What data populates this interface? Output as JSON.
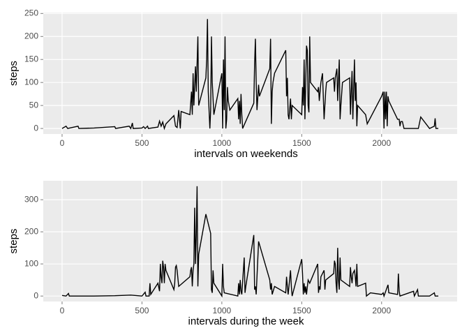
{
  "chart_data": [
    {
      "type": "line",
      "xlabel": "intervals on weekends",
      "ylabel": "steps",
      "color": "#000000",
      "grid": true,
      "xlim": [
        -117.75,
        2472.75
      ],
      "xticks": [
        0,
        500,
        1000,
        1500,
        2000
      ],
      "ylim": [
        -12,
        252
      ],
      "yticks": [
        0,
        50,
        100,
        150,
        200,
        250
      ],
      "x": [
        0,
        25,
        35,
        100,
        105,
        200,
        330,
        335,
        420,
        430,
        440,
        445,
        500,
        510,
        520,
        535,
        540,
        600,
        610,
        620,
        630,
        640,
        650,
        700,
        710,
        720,
        730,
        740,
        745,
        800,
        810,
        815,
        820,
        825,
        835,
        840,
        850,
        855,
        900,
        905,
        910,
        915,
        925,
        930,
        935,
        940,
        950,
        1000,
        1005,
        1010,
        1015,
        1020,
        1025,
        1030,
        1035,
        1040,
        1050,
        1100,
        1105,
        1110,
        1115,
        1120,
        1125,
        1130,
        1200,
        1205,
        1210,
        1215,
        1220,
        1230,
        1235,
        1300,
        1305,
        1310,
        1315,
        1320,
        1330,
        1400,
        1405,
        1410,
        1415,
        1420,
        1430,
        1435,
        1440,
        1500,
        1505,
        1510,
        1515,
        1520,
        1525,
        1530,
        1535,
        1540,
        1545,
        1550,
        1555,
        1600,
        1605,
        1610,
        1620,
        1630,
        1640,
        1650,
        1655,
        1700,
        1705,
        1710,
        1720,
        1725,
        1735,
        1740,
        1745,
        1755,
        1800,
        1805,
        1810,
        1815,
        1820,
        1830,
        1835,
        1840,
        1845,
        1850,
        1900,
        1910,
        2000,
        2010,
        2015,
        2020,
        2025,
        2030,
        2035,
        2040,
        2045,
        2100,
        2110,
        2115,
        2120,
        2125,
        2130,
        2140,
        2200,
        2230,
        2245,
        2300,
        2330,
        2335,
        2340,
        2355
      ],
      "values": [
        0,
        5,
        0,
        5,
        0,
        1,
        4,
        0,
        5,
        0,
        12,
        0,
        1,
        4,
        0,
        5,
        0,
        3,
        16,
        5,
        14,
        0,
        10,
        28,
        5,
        2,
        40,
        0,
        37,
        30,
        80,
        30,
        120,
        50,
        135,
        80,
        200,
        50,
        110,
        150,
        238,
        80,
        0,
        40,
        200,
        100,
        30,
        120,
        0,
        150,
        40,
        200,
        0,
        20,
        90,
        60,
        40,
        65,
        20,
        60,
        10,
        75,
        30,
        0,
        55,
        140,
        195,
        100,
        40,
        95,
        70,
        130,
        195,
        10,
        80,
        100,
        120,
        170,
        70,
        110,
        30,
        20,
        65,
        20,
        50,
        30,
        90,
        50,
        150,
        20,
        100,
        180,
        170,
        50,
        35,
        200,
        100,
        80,
        90,
        60,
        100,
        120,
        20,
        80,
        100,
        110,
        80,
        110,
        130,
        60,
        150,
        20,
        50,
        100,
        110,
        30,
        80,
        125,
        20,
        150,
        60,
        100,
        5,
        50,
        30,
        10,
        70,
        80,
        0,
        80,
        20,
        80,
        5,
        70,
        60,
        20,
        20,
        5,
        15,
        15,
        15,
        0,
        0,
        0,
        25,
        0,
        5,
        22,
        0,
        0
      ]
    },
    {
      "type": "line",
      "xlabel": "intervals during the week",
      "ylabel": "steps",
      "color": "#000000",
      "grid": true,
      "xlim": [
        -117.75,
        2472.75
      ],
      "xticks": [
        0,
        500,
        1000,
        1500,
        2000
      ],
      "ylim": [
        -17,
        359
      ],
      "yticks": [
        0,
        100,
        200,
        300
      ],
      "x": [
        0,
        25,
        40,
        45,
        200,
        330,
        430,
        500,
        520,
        525,
        545,
        550,
        555,
        600,
        610,
        615,
        620,
        625,
        630,
        635,
        640,
        645,
        650,
        700,
        705,
        710,
        715,
        720,
        730,
        800,
        805,
        810,
        815,
        820,
        825,
        830,
        835,
        840,
        845,
        850,
        855,
        900,
        930,
        935,
        940,
        945,
        950,
        1000,
        1005,
        1010,
        1015,
        1100,
        1105,
        1110,
        1115,
        1120,
        1125,
        1140,
        1145,
        1150,
        1200,
        1205,
        1210,
        1215,
        1230,
        1300,
        1305,
        1310,
        1315,
        1330,
        1400,
        1405,
        1410,
        1415,
        1430,
        1435,
        1440,
        1500,
        1505,
        1510,
        1515,
        1520,
        1525,
        1530,
        1540,
        1550,
        1600,
        1605,
        1610,
        1615,
        1620,
        1630,
        1640,
        1645,
        1650,
        1700,
        1705,
        1710,
        1715,
        1720,
        1725,
        1730,
        1735,
        1740,
        1745,
        1800,
        1805,
        1810,
        1815,
        1820,
        1830,
        1835,
        1840,
        1845,
        1850,
        1900,
        1905,
        1930,
        2000,
        2010,
        2015,
        2040,
        2045,
        2100,
        2105,
        2110,
        2115,
        2200,
        2205,
        2225,
        2230,
        2300,
        2330,
        2335,
        2355
      ],
      "values": [
        2,
        0,
        8,
        0,
        0,
        1,
        3,
        0,
        12,
        0,
        0,
        40,
        5,
        40,
        15,
        100,
        60,
        40,
        110,
        90,
        40,
        100,
        80,
        20,
        40,
        90,
        95,
        80,
        30,
        60,
        80,
        90,
        30,
        80,
        100,
        275,
        100,
        190,
        342,
        30,
        130,
        255,
        195,
        20,
        10,
        80,
        40,
        0,
        100,
        30,
        10,
        0,
        40,
        5,
        50,
        15,
        5,
        120,
        10,
        30,
        190,
        20,
        30,
        5,
        170,
        50,
        20,
        40,
        5,
        30,
        10,
        60,
        30,
        5,
        80,
        30,
        0,
        115,
        70,
        5,
        40,
        10,
        30,
        5,
        50,
        40,
        100,
        10,
        30,
        20,
        60,
        70,
        80,
        20,
        50,
        70,
        110,
        100,
        40,
        10,
        150,
        50,
        20,
        120,
        50,
        30,
        90,
        60,
        40,
        70,
        80,
        60,
        30,
        100,
        30,
        40,
        0,
        10,
        5,
        10,
        0,
        35,
        10,
        5,
        70,
        15,
        0,
        15,
        0,
        20,
        0,
        0,
        10,
        0,
        0
      ]
    }
  ]
}
